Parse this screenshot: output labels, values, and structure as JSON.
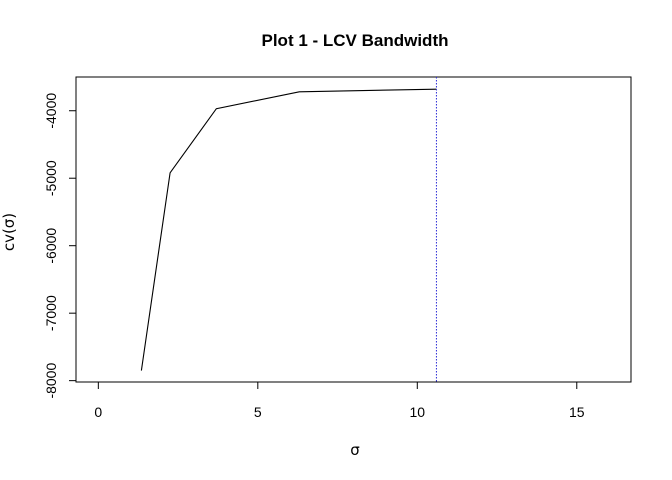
{
  "chart_data": {
    "type": "line",
    "title": "Plot 1 - LCV Bandwidth",
    "xlabel": "σ",
    "ylabel": "cv(σ)",
    "xlim": [
      -0.7,
      16.7
    ],
    "ylim": [
      -8020,
      -3500
    ],
    "x_ticks": [
      0,
      5,
      10,
      15
    ],
    "x_tick_labels": [
      "0",
      "5",
      "10",
      "15"
    ],
    "y_ticks": [
      -8000,
      -7000,
      -6000,
      -5000,
      -4000
    ],
    "y_tick_labels": [
      "-8000",
      "-7000",
      "-6000",
      "-5000",
      "-4000"
    ],
    "series": [
      {
        "x": [
          1.35,
          2.25,
          3.7,
          6.3,
          10.6
        ],
        "y": [
          -7850,
          -4920,
          -3970,
          -3720,
          -3680
        ],
        "color": "#000000"
      }
    ],
    "vline": {
      "x": 10.6,
      "color": "#2b2bd6",
      "style": "dotted"
    },
    "grid": false,
    "legend": "none"
  }
}
